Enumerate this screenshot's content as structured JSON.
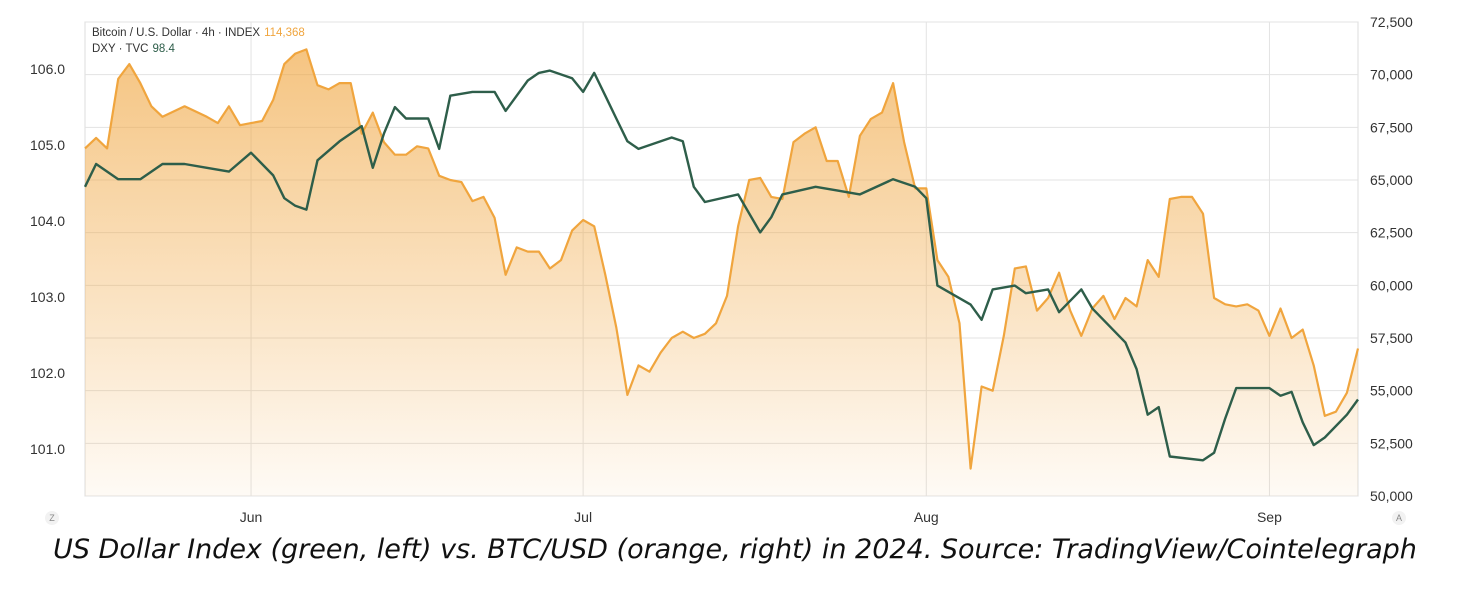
{
  "legend": {
    "btc_label": "Bitcoin / U.S. Dollar · 4h · INDEX",
    "btc_value": "114,368",
    "dxy_label": "DXY · TVC",
    "dxy_value": "98.4"
  },
  "corner": {
    "left": "Z",
    "right": "A"
  },
  "caption": "US Dollar Index (green, left) vs. BTC/USD (orange, right) in 2024. Source: TradingView/Cointelegraph",
  "colors": {
    "btc": "#f0a53e",
    "dxy": "#2e5e4a",
    "grid": "#e3e3e3",
    "axis_text": "#333333"
  },
  "chart_data": {
    "type": "line",
    "x_type": "date",
    "x_range": [
      "2024-05-17",
      "2024-09-09"
    ],
    "x_ticks": [
      {
        "date": "2024-06-01",
        "label": "Jun"
      },
      {
        "date": "2024-07-01",
        "label": "Jul"
      },
      {
        "date": "2024-08-01",
        "label": "Aug"
      },
      {
        "date": "2024-09-01",
        "label": "Sep"
      }
    ],
    "left_axis": {
      "ylim": [
        100.38,
        106.62
      ],
      "ticks": [
        "101.0",
        "102.0",
        "103.0",
        "104.0",
        "105.0",
        "106.0"
      ],
      "tick_values": [
        101,
        102,
        103,
        104,
        105,
        106
      ]
    },
    "right_axis": {
      "ylim": [
        50000,
        72500
      ],
      "ticks": [
        "50,000",
        "52,500",
        "55,000",
        "57,500",
        "60,000",
        "62,500",
        "65,000",
        "67,500",
        "70,000",
        "72,500"
      ],
      "tick_values": [
        50000,
        52500,
        55000,
        57500,
        60000,
        62500,
        65000,
        67500,
        70000,
        72500
      ]
    },
    "grid": true,
    "series": [
      {
        "axis": "left",
        "style": "line",
        "points": [
          [
            "2024-05-17",
            104.45
          ],
          [
            "2024-05-18",
            104.75
          ],
          [
            "2024-05-20",
            104.55
          ],
          [
            "2024-05-22",
            104.55
          ],
          [
            "2024-05-24",
            104.75
          ],
          [
            "2024-05-26",
            104.75
          ],
          [
            "2024-05-28",
            104.7
          ],
          [
            "2024-05-30",
            104.65
          ],
          [
            "2024-06-01",
            104.9
          ],
          [
            "2024-06-03",
            104.6
          ],
          [
            "2024-06-04",
            104.3
          ],
          [
            "2024-06-05",
            104.2
          ],
          [
            "2024-06-06",
            104.15
          ],
          [
            "2024-06-07",
            104.8
          ],
          [
            "2024-06-09",
            105.05
          ],
          [
            "2024-06-11",
            105.25
          ],
          [
            "2024-06-12",
            104.7
          ],
          [
            "2024-06-13",
            105.15
          ],
          [
            "2024-06-14",
            105.5
          ],
          [
            "2024-06-15",
            105.35
          ],
          [
            "2024-06-17",
            105.35
          ],
          [
            "2024-06-18",
            104.95
          ],
          [
            "2024-06-19",
            105.65
          ],
          [
            "2024-06-21",
            105.7
          ],
          [
            "2024-06-23",
            105.7
          ],
          [
            "2024-06-24",
            105.45
          ],
          [
            "2024-06-26",
            105.85
          ],
          [
            "2024-06-27",
            105.95
          ],
          [
            "2024-06-28",
            105.98
          ],
          [
            "2024-06-30",
            105.88
          ],
          [
            "2024-07-01",
            105.7
          ],
          [
            "2024-07-02",
            105.95
          ],
          [
            "2024-07-03",
            105.65
          ],
          [
            "2024-07-04",
            105.35
          ],
          [
            "2024-07-05",
            105.05
          ],
          [
            "2024-07-06",
            104.95
          ],
          [
            "2024-07-09",
            105.1
          ],
          [
            "2024-07-10",
            105.05
          ],
          [
            "2024-07-11",
            104.45
          ],
          [
            "2024-07-12",
            104.25
          ],
          [
            "2024-07-15",
            104.35
          ],
          [
            "2024-07-17",
            103.85
          ],
          [
            "2024-07-18",
            104.05
          ],
          [
            "2024-07-19",
            104.35
          ],
          [
            "2024-07-22",
            104.45
          ],
          [
            "2024-07-24",
            104.4
          ],
          [
            "2024-07-26",
            104.35
          ],
          [
            "2024-07-29",
            104.55
          ],
          [
            "2024-07-31",
            104.45
          ],
          [
            "2024-08-01",
            104.3
          ],
          [
            "2024-08-02",
            103.15
          ],
          [
            "2024-08-05",
            102.9
          ],
          [
            "2024-08-06",
            102.7
          ],
          [
            "2024-08-07",
            103.1
          ],
          [
            "2024-08-09",
            103.15
          ],
          [
            "2024-08-10",
            103.05
          ],
          [
            "2024-08-12",
            103.1
          ],
          [
            "2024-08-13",
            102.8
          ],
          [
            "2024-08-15",
            103.1
          ],
          [
            "2024-08-16",
            102.85
          ],
          [
            "2024-08-19",
            102.4
          ],
          [
            "2024-08-20",
            102.05
          ],
          [
            "2024-08-21",
            101.45
          ],
          [
            "2024-08-22",
            101.55
          ],
          [
            "2024-08-23",
            100.9
          ],
          [
            "2024-08-26",
            100.85
          ],
          [
            "2024-08-27",
            100.95
          ],
          [
            "2024-08-28",
            101.4
          ],
          [
            "2024-08-29",
            101.8
          ],
          [
            "2024-09-01",
            101.8
          ],
          [
            "2024-09-02",
            101.7
          ],
          [
            "2024-09-03",
            101.75
          ],
          [
            "2024-09-04",
            101.35
          ],
          [
            "2024-09-05",
            101.05
          ],
          [
            "2024-09-06",
            101.15
          ],
          [
            "2024-09-08",
            101.45
          ],
          [
            "2024-09-09",
            101.65
          ]
        ]
      },
      {
        "axis": "right",
        "style": "area",
        "points": [
          [
            "2024-05-17",
            66500
          ],
          [
            "2024-05-18",
            67000
          ],
          [
            "2024-05-19",
            66500
          ],
          [
            "2024-05-20",
            69800
          ],
          [
            "2024-05-21",
            70500
          ],
          [
            "2024-05-22",
            69600
          ],
          [
            "2024-05-23",
            68500
          ],
          [
            "2024-05-24",
            68000
          ],
          [
            "2024-05-26",
            68500
          ],
          [
            "2024-05-28",
            68000
          ],
          [
            "2024-05-29",
            67700
          ],
          [
            "2024-05-30",
            68500
          ],
          [
            "2024-05-31",
            67600
          ],
          [
            "2024-06-01",
            67700
          ],
          [
            "2024-06-02",
            67800
          ],
          [
            "2024-06-03",
            68800
          ],
          [
            "2024-06-04",
            70500
          ],
          [
            "2024-06-05",
            71000
          ],
          [
            "2024-06-06",
            71200
          ],
          [
            "2024-06-07",
            69500
          ],
          [
            "2024-06-08",
            69300
          ],
          [
            "2024-06-09",
            69600
          ],
          [
            "2024-06-10",
            69600
          ],
          [
            "2024-06-11",
            67200
          ],
          [
            "2024-06-12",
            68200
          ],
          [
            "2024-06-13",
            66800
          ],
          [
            "2024-06-14",
            66200
          ],
          [
            "2024-06-15",
            66200
          ],
          [
            "2024-06-16",
            66600
          ],
          [
            "2024-06-17",
            66500
          ],
          [
            "2024-06-18",
            65200
          ],
          [
            "2024-06-19",
            65000
          ],
          [
            "2024-06-20",
            64900
          ],
          [
            "2024-06-21",
            64000
          ],
          [
            "2024-06-22",
            64200
          ],
          [
            "2024-06-23",
            63200
          ],
          [
            "2024-06-24",
            60500
          ],
          [
            "2024-06-25",
            61800
          ],
          [
            "2024-06-26",
            61600
          ],
          [
            "2024-06-27",
            61600
          ],
          [
            "2024-06-28",
            60800
          ],
          [
            "2024-06-29",
            61200
          ],
          [
            "2024-06-30",
            62600
          ],
          [
            "2024-07-01",
            63100
          ],
          [
            "2024-07-02",
            62800
          ],
          [
            "2024-07-03",
            60500
          ],
          [
            "2024-07-04",
            58000
          ],
          [
            "2024-07-05",
            54800
          ],
          [
            "2024-07-06",
            56200
          ],
          [
            "2024-07-07",
            55900
          ],
          [
            "2024-07-08",
            56800
          ],
          [
            "2024-07-09",
            57500
          ],
          [
            "2024-07-10",
            57800
          ],
          [
            "2024-07-11",
            57500
          ],
          [
            "2024-07-12",
            57700
          ],
          [
            "2024-07-13",
            58200
          ],
          [
            "2024-07-14",
            59500
          ],
          [
            "2024-07-15",
            62800
          ],
          [
            "2024-07-16",
            65000
          ],
          [
            "2024-07-17",
            65100
          ],
          [
            "2024-07-18",
            64200
          ],
          [
            "2024-07-19",
            64100
          ],
          [
            "2024-07-20",
            66800
          ],
          [
            "2024-07-21",
            67200
          ],
          [
            "2024-07-22",
            67500
          ],
          [
            "2024-07-23",
            65900
          ],
          [
            "2024-07-24",
            65900
          ],
          [
            "2024-07-25",
            64200
          ],
          [
            "2024-07-26",
            67100
          ],
          [
            "2024-07-27",
            67900
          ],
          [
            "2024-07-28",
            68200
          ],
          [
            "2024-07-29",
            69600
          ],
          [
            "2024-07-30",
            66800
          ],
          [
            "2024-07-31",
            64600
          ],
          [
            "2024-08-01",
            64600
          ],
          [
            "2024-08-02",
            61200
          ],
          [
            "2024-08-03",
            60400
          ],
          [
            "2024-08-04",
            58200
          ],
          [
            "2024-08-05",
            51300
          ],
          [
            "2024-08-06",
            55200
          ],
          [
            "2024-08-07",
            55000
          ],
          [
            "2024-08-08",
            57600
          ],
          [
            "2024-08-09",
            60800
          ],
          [
            "2024-08-10",
            60900
          ],
          [
            "2024-08-11",
            58800
          ],
          [
            "2024-08-12",
            59400
          ],
          [
            "2024-08-13",
            60600
          ],
          [
            "2024-08-14",
            58800
          ],
          [
            "2024-08-15",
            57600
          ],
          [
            "2024-08-16",
            58900
          ],
          [
            "2024-08-17",
            59500
          ],
          [
            "2024-08-18",
            58400
          ],
          [
            "2024-08-19",
            59400
          ],
          [
            "2024-08-20",
            59000
          ],
          [
            "2024-08-21",
            61200
          ],
          [
            "2024-08-22",
            60400
          ],
          [
            "2024-08-23",
            64100
          ],
          [
            "2024-08-24",
            64200
          ],
          [
            "2024-08-25",
            64200
          ],
          [
            "2024-08-26",
            63400
          ],
          [
            "2024-08-27",
            59400
          ],
          [
            "2024-08-28",
            59100
          ],
          [
            "2024-08-29",
            59000
          ],
          [
            "2024-08-30",
            59100
          ],
          [
            "2024-08-31",
            58800
          ],
          [
            "2024-09-01",
            57600
          ],
          [
            "2024-09-02",
            58900
          ],
          [
            "2024-09-03",
            57500
          ],
          [
            "2024-09-04",
            57900
          ],
          [
            "2024-09-05",
            56200
          ],
          [
            "2024-09-06",
            53800
          ],
          [
            "2024-09-07",
            54000
          ],
          [
            "2024-09-08",
            54900
          ],
          [
            "2024-09-09",
            57000
          ]
        ]
      }
    ]
  }
}
